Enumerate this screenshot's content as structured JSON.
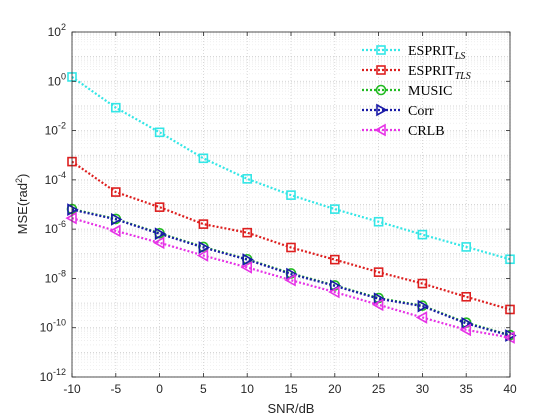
{
  "chart_data": {
    "type": "line",
    "xlabel": "SNR/dB",
    "ylabel": "MSE(rad",
    "ylabel_sup": "2",
    "ylabel_close": ")",
    "xlim": [
      -10,
      40
    ],
    "ylim": [
      1e-12,
      100
    ],
    "yscale": "log",
    "grid": true,
    "legend_position": "top-right",
    "x": [
      -10,
      -5,
      0,
      5,
      10,
      15,
      20,
      25,
      30,
      35,
      40
    ],
    "xticks": [
      "-10",
      "-5",
      "0",
      "5",
      "10",
      "15",
      "20",
      "25",
      "30",
      "35",
      "40"
    ],
    "yticks": [
      {
        "base": "10",
        "exp": "-12"
      },
      {
        "base": "10",
        "exp": "-10"
      },
      {
        "base": "10",
        "exp": "-8"
      },
      {
        "base": "10",
        "exp": "-6"
      },
      {
        "base": "10",
        "exp": "-4"
      },
      {
        "base": "10",
        "exp": "-2"
      },
      {
        "base": "10",
        "exp": "0"
      },
      {
        "base": "10",
        "exp": "2"
      }
    ],
    "series": [
      {
        "name": "ESPRIT",
        "subscript": "LS",
        "color": "#33e6e6",
        "marker": "square",
        "values": [
          1.5,
          0.085,
          0.0085,
          0.00075,
          0.00011,
          2.4e-05,
          6.5e-06,
          2e-06,
          6e-07,
          1.9e-07,
          6e-08
        ]
      },
      {
        "name": "ESPRIT",
        "subscript": "TLS",
        "color": "#dd1f1f",
        "marker": "square",
        "values": [
          0.00055,
          3.2e-05,
          7.8e-06,
          1.6e-06,
          7.2e-07,
          1.8e-07,
          5.8e-08,
          1.8e-08,
          6.2e-09,
          1.8e-09,
          5.5e-10
        ]
      },
      {
        "name": "MUSIC",
        "subscript": "",
        "color": "#22bb22",
        "marker": "circle",
        "values": [
          6.5e-06,
          2.6e-06,
          6.8e-07,
          1.9e-07,
          6e-08,
          1.6e-08,
          5.2e-09,
          1.6e-09,
          7.8e-10,
          1.6e-10,
          5e-11
        ]
      },
      {
        "name": "Corr",
        "subscript": "",
        "color": "#1a1aa8",
        "marker": "triangle-right",
        "values": [
          6.2e-06,
          2.5e-06,
          6.5e-07,
          1.8e-07,
          5.8e-08,
          1.5e-08,
          5e-09,
          1.5e-09,
          7.5e-10,
          1.5e-10,
          4.8e-11
        ]
      },
      {
        "name": "CRLB",
        "subscript": "",
        "color": "#e633e6",
        "marker": "triangle-left",
        "values": [
          2.8e-06,
          8.5e-07,
          2.8e-07,
          8.5e-08,
          2.8e-08,
          8.5e-09,
          2.8e-09,
          8.5e-10,
          2.6e-10,
          8.2e-11,
          4e-11
        ]
      }
    ]
  }
}
